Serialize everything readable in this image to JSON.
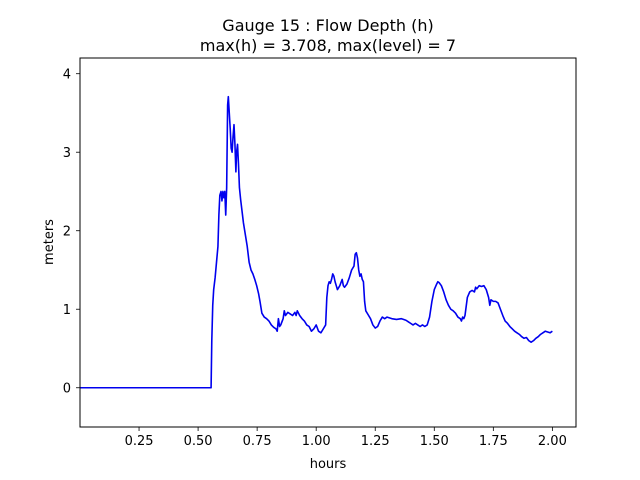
{
  "chart_data": {
    "type": "line",
    "title_line1": "Gauge 15 : Flow Depth (h)",
    "title_line2": "max(h) =   3.708,    max(level) = 7",
    "xlabel": "hours",
    "ylabel": "meters",
    "xlim": [
      0.0,
      2.1
    ],
    "ylim": [
      -0.5,
      4.2
    ],
    "xticks": [
      0.25,
      0.5,
      0.75,
      1.0,
      1.25,
      1.5,
      1.75,
      2.0
    ],
    "xtick_labels": [
      "0.25",
      "0.50",
      "0.75",
      "1.00",
      "1.25",
      "1.50",
      "1.75",
      "2.00"
    ],
    "yticks": [
      0,
      1,
      2,
      3,
      4
    ],
    "ytick_labels": [
      "0",
      "1",
      "2",
      "3",
      "4"
    ],
    "grid": false,
    "series": [
      {
        "color": "#0000ee",
        "points": [
          [
            0.0,
            0.0
          ],
          [
            0.3,
            0.0
          ],
          [
            0.555,
            0.0
          ],
          [
            0.558,
            0.6
          ],
          [
            0.562,
            1.05
          ],
          [
            0.566,
            1.25
          ],
          [
            0.572,
            1.4
          ],
          [
            0.578,
            1.6
          ],
          [
            0.584,
            1.8
          ],
          [
            0.588,
            2.2
          ],
          [
            0.592,
            2.45
          ],
          [
            0.597,
            2.5
          ],
          [
            0.601,
            2.38
          ],
          [
            0.605,
            2.5
          ],
          [
            0.609,
            2.42
          ],
          [
            0.613,
            2.5
          ],
          [
            0.617,
            2.2
          ],
          [
            0.621,
            2.55
          ],
          [
            0.625,
            3.6
          ],
          [
            0.628,
            3.708
          ],
          [
            0.632,
            3.5
          ],
          [
            0.636,
            3.3
          ],
          [
            0.64,
            3.05
          ],
          [
            0.644,
            3.0
          ],
          [
            0.648,
            3.2
          ],
          [
            0.652,
            3.35
          ],
          [
            0.656,
            3.1
          ],
          [
            0.66,
            2.75
          ],
          [
            0.663,
            3.0
          ],
          [
            0.667,
            3.1
          ],
          [
            0.671,
            2.85
          ],
          [
            0.675,
            2.55
          ],
          [
            0.68,
            2.4
          ],
          [
            0.686,
            2.25
          ],
          [
            0.692,
            2.1
          ],
          [
            0.7,
            1.95
          ],
          [
            0.708,
            1.8
          ],
          [
            0.716,
            1.6
          ],
          [
            0.724,
            1.5
          ],
          [
            0.732,
            1.45
          ],
          [
            0.74,
            1.38
          ],
          [
            0.748,
            1.3
          ],
          [
            0.756,
            1.2
          ],
          [
            0.762,
            1.1
          ],
          [
            0.77,
            0.95
          ],
          [
            0.78,
            0.9
          ],
          [
            0.79,
            0.88
          ],
          [
            0.8,
            0.85
          ],
          [
            0.81,
            0.8
          ],
          [
            0.82,
            0.77
          ],
          [
            0.83,
            0.75
          ],
          [
            0.835,
            0.72
          ],
          [
            0.84,
            0.88
          ],
          [
            0.845,
            0.78
          ],
          [
            0.85,
            0.8
          ],
          [
            0.86,
            0.88
          ],
          [
            0.865,
            0.98
          ],
          [
            0.87,
            0.92
          ],
          [
            0.88,
            0.96
          ],
          [
            0.89,
            0.94
          ],
          [
            0.9,
            0.92
          ],
          [
            0.91,
            0.96
          ],
          [
            0.915,
            0.92
          ],
          [
            0.92,
            0.98
          ],
          [
            0.93,
            0.92
          ],
          [
            0.94,
            0.88
          ],
          [
            0.95,
            0.85
          ],
          [
            0.96,
            0.8
          ],
          [
            0.97,
            0.78
          ],
          [
            0.98,
            0.72
          ],
          [
            0.99,
            0.75
          ],
          [
            1.0,
            0.8
          ],
          [
            1.01,
            0.72
          ],
          [
            1.02,
            0.7
          ],
          [
            1.03,
            0.75
          ],
          [
            1.04,
            0.8
          ],
          [
            1.045,
            1.15
          ],
          [
            1.05,
            1.3
          ],
          [
            1.055,
            1.35
          ],
          [
            1.06,
            1.33
          ],
          [
            1.065,
            1.38
          ],
          [
            1.07,
            1.45
          ],
          [
            1.075,
            1.42
          ],
          [
            1.08,
            1.35
          ],
          [
            1.085,
            1.3
          ],
          [
            1.09,
            1.25
          ],
          [
            1.1,
            1.3
          ],
          [
            1.11,
            1.38
          ],
          [
            1.115,
            1.3
          ],
          [
            1.12,
            1.28
          ],
          [
            1.13,
            1.32
          ],
          [
            1.14,
            1.4
          ],
          [
            1.15,
            1.5
          ],
          [
            1.16,
            1.55
          ],
          [
            1.165,
            1.7
          ],
          [
            1.17,
            1.72
          ],
          [
            1.175,
            1.65
          ],
          [
            1.18,
            1.5
          ],
          [
            1.185,
            1.42
          ],
          [
            1.19,
            1.45
          ],
          [
            1.195,
            1.38
          ],
          [
            1.2,
            1.35
          ],
          [
            1.205,
            1.1
          ],
          [
            1.21,
            0.98
          ],
          [
            1.22,
            0.93
          ],
          [
            1.23,
            0.88
          ],
          [
            1.24,
            0.8
          ],
          [
            1.25,
            0.76
          ],
          [
            1.26,
            0.78
          ],
          [
            1.27,
            0.85
          ],
          [
            1.28,
            0.9
          ],
          [
            1.29,
            0.88
          ],
          [
            1.3,
            0.9
          ],
          [
            1.31,
            0.89
          ],
          [
            1.32,
            0.88
          ],
          [
            1.34,
            0.87
          ],
          [
            1.36,
            0.88
          ],
          [
            1.38,
            0.86
          ],
          [
            1.39,
            0.84
          ],
          [
            1.4,
            0.82
          ],
          [
            1.41,
            0.8
          ],
          [
            1.42,
            0.82
          ],
          [
            1.43,
            0.8
          ],
          [
            1.44,
            0.78
          ],
          [
            1.45,
            0.8
          ],
          [
            1.46,
            0.78
          ],
          [
            1.47,
            0.8
          ],
          [
            1.48,
            0.9
          ],
          [
            1.49,
            1.1
          ],
          [
            1.5,
            1.25
          ],
          [
            1.51,
            1.32
          ],
          [
            1.515,
            1.35
          ],
          [
            1.52,
            1.34
          ],
          [
            1.53,
            1.3
          ],
          [
            1.54,
            1.22
          ],
          [
            1.55,
            1.12
          ],
          [
            1.56,
            1.05
          ],
          [
            1.57,
            1.0
          ],
          [
            1.58,
            0.98
          ],
          [
            1.59,
            0.95
          ],
          [
            1.6,
            0.9
          ],
          [
            1.61,
            0.88
          ],
          [
            1.615,
            0.85
          ],
          [
            1.62,
            0.9
          ],
          [
            1.625,
            0.88
          ],
          [
            1.63,
            0.92
          ],
          [
            1.64,
            1.15
          ],
          [
            1.65,
            1.22
          ],
          [
            1.66,
            1.24
          ],
          [
            1.67,
            1.22
          ],
          [
            1.675,
            1.28
          ],
          [
            1.68,
            1.26
          ],
          [
            1.69,
            1.3
          ],
          [
            1.7,
            1.29
          ],
          [
            1.71,
            1.3
          ],
          [
            1.72,
            1.25
          ],
          [
            1.73,
            1.15
          ],
          [
            1.735,
            1.05
          ],
          [
            1.74,
            1.12
          ],
          [
            1.75,
            1.1
          ],
          [
            1.76,
            1.1
          ],
          [
            1.77,
            1.08
          ],
          [
            1.78,
            1.0
          ],
          [
            1.79,
            0.92
          ],
          [
            1.8,
            0.85
          ],
          [
            1.81,
            0.82
          ],
          [
            1.82,
            0.78
          ],
          [
            1.83,
            0.75
          ],
          [
            1.84,
            0.72
          ],
          [
            1.85,
            0.7
          ],
          [
            1.86,
            0.68
          ],
          [
            1.87,
            0.65
          ],
          [
            1.88,
            0.63
          ],
          [
            1.89,
            0.64
          ],
          [
            1.9,
            0.6
          ],
          [
            1.91,
            0.58
          ],
          [
            1.92,
            0.6
          ],
          [
            1.93,
            0.63
          ],
          [
            1.94,
            0.65
          ],
          [
            1.95,
            0.68
          ],
          [
            1.96,
            0.7
          ],
          [
            1.97,
            0.72
          ],
          [
            1.98,
            0.71
          ],
          [
            1.99,
            0.7
          ],
          [
            2.0,
            0.72
          ]
        ]
      }
    ]
  }
}
